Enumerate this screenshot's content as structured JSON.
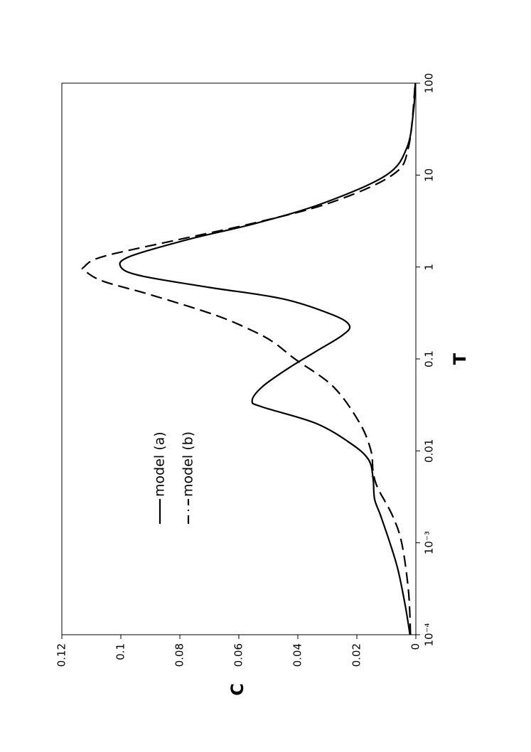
{
  "chart_data": {
    "type": "line",
    "x_label": "T",
    "y_label": "C",
    "x_scale": "log",
    "xlim": [
      0.0001,
      100
    ],
    "xticks": [
      {
        "value": 0.0001,
        "label": "10⁻⁴"
      },
      {
        "value": 0.001,
        "label": "10⁻³"
      },
      0.01,
      0.1,
      1,
      10,
      100
    ],
    "ylim": [
      0,
      0.12
    ],
    "yticks": [
      0,
      0.02,
      0.04,
      0.06,
      0.08,
      0.1,
      0.12
    ],
    "series": [
      {
        "name": "model (a)",
        "color": "#000000",
        "dash": "solid",
        "x": [
          0.0001,
          0.0002,
          0.0005,
          0.001,
          0.002,
          0.003,
          0.005,
          0.008,
          0.012,
          0.02,
          0.03,
          0.035,
          0.05,
          0.08,
          0.12,
          0.18,
          0.23,
          0.3,
          0.45,
          0.6,
          0.8,
          1,
          1.3,
          2,
          3,
          5,
          10,
          20,
          50,
          100
        ],
        "values": [
          0.002,
          0.0035,
          0.006,
          0.0088,
          0.012,
          0.014,
          0.0145,
          0.016,
          0.022,
          0.034,
          0.052,
          0.0555,
          0.052,
          0.043,
          0.034,
          0.025,
          0.0225,
          0.028,
          0.045,
          0.07,
          0.093,
          0.1,
          0.097,
          0.077,
          0.054,
          0.031,
          0.01,
          0.003,
          0.0008,
          0.0002
        ]
      },
      {
        "name": "model (b)",
        "color": "#000000",
        "dash": "dashed",
        "x": [
          0.0001,
          0.0003,
          0.001,
          0.002,
          0.004,
          0.006,
          0.01,
          0.02,
          0.05,
          0.1,
          0.15,
          0.2,
          0.3,
          0.5,
          0.7,
          0.9,
          1,
          1.3,
          2,
          3,
          5,
          10,
          20,
          100
        ],
        "values": [
          0.0018,
          0.0025,
          0.0048,
          0.008,
          0.013,
          0.0145,
          0.0152,
          0.019,
          0.028,
          0.041,
          0.048,
          0.055,
          0.068,
          0.09,
          0.106,
          0.112,
          0.1125,
          0.106,
          0.08,
          0.055,
          0.029,
          0.008,
          0.0025,
          0.0002
        ]
      }
    ],
    "legend": "upper-left"
  }
}
